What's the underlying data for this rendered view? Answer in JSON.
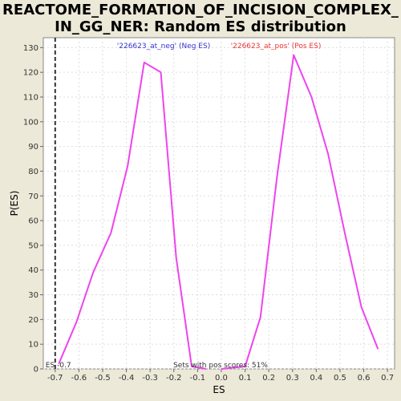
{
  "title_lines": [
    "REACTOME_FORMATION_OF_INCISION_COMPLEX_",
    "IN_GG_NER: Random ES distribution"
  ],
  "chart_data": {
    "type": "line",
    "xlabel": "ES",
    "ylabel": "P(ES)",
    "xlim": [
      -0.75,
      0.73
    ],
    "ylim": [
      0,
      134
    ],
    "xticks": [
      -0.7,
      -0.6,
      -0.5,
      -0.4,
      -0.3,
      -0.2,
      -0.1,
      0.0,
      0.1,
      0.2,
      0.3,
      0.4,
      0.5,
      0.6,
      0.7
    ],
    "xtick_labels": [
      "-0.7",
      "-0.6",
      "-0.5",
      "-0.4",
      "-0.3",
      "-0.2",
      "-0.1",
      "0.0",
      "0.1",
      "0.2",
      "0.3",
      "0.4",
      "0.5",
      "0.6",
      "0.7"
    ],
    "yticks": [
      0,
      10,
      20,
      30,
      40,
      50,
      60,
      70,
      80,
      90,
      100,
      110,
      120,
      130
    ],
    "grid": true,
    "series": [
      {
        "name": "'226623_at_neg' (Neg ES)",
        "color": "#ee44ee",
        "legend_color": "#3333cc",
        "x": [
          -0.685,
          -0.61,
          -0.54,
          -0.465,
          -0.395,
          -0.325,
          -0.255,
          -0.19,
          -0.125,
          -0.065
        ],
        "y": [
          2,
          19,
          39,
          55,
          82,
          124,
          120,
          45,
          1,
          0
        ]
      },
      {
        "name": "'226623_at_pos' (Pos ES)",
        "color": "#ee44ee",
        "legend_color": "#ee3333",
        "x": [
          0.0,
          0.1,
          0.165,
          0.235,
          0.305,
          0.38,
          0.45,
          0.52,
          0.59,
          0.66
        ],
        "y": [
          0,
          1,
          21,
          78,
          127,
          110,
          87,
          55,
          25,
          8
        ]
      }
    ],
    "marker": {
      "x": -0.7,
      "label": "ES -0.7",
      "color": "#333333"
    },
    "annotation": "Sets with pos scores: 51%"
  }
}
